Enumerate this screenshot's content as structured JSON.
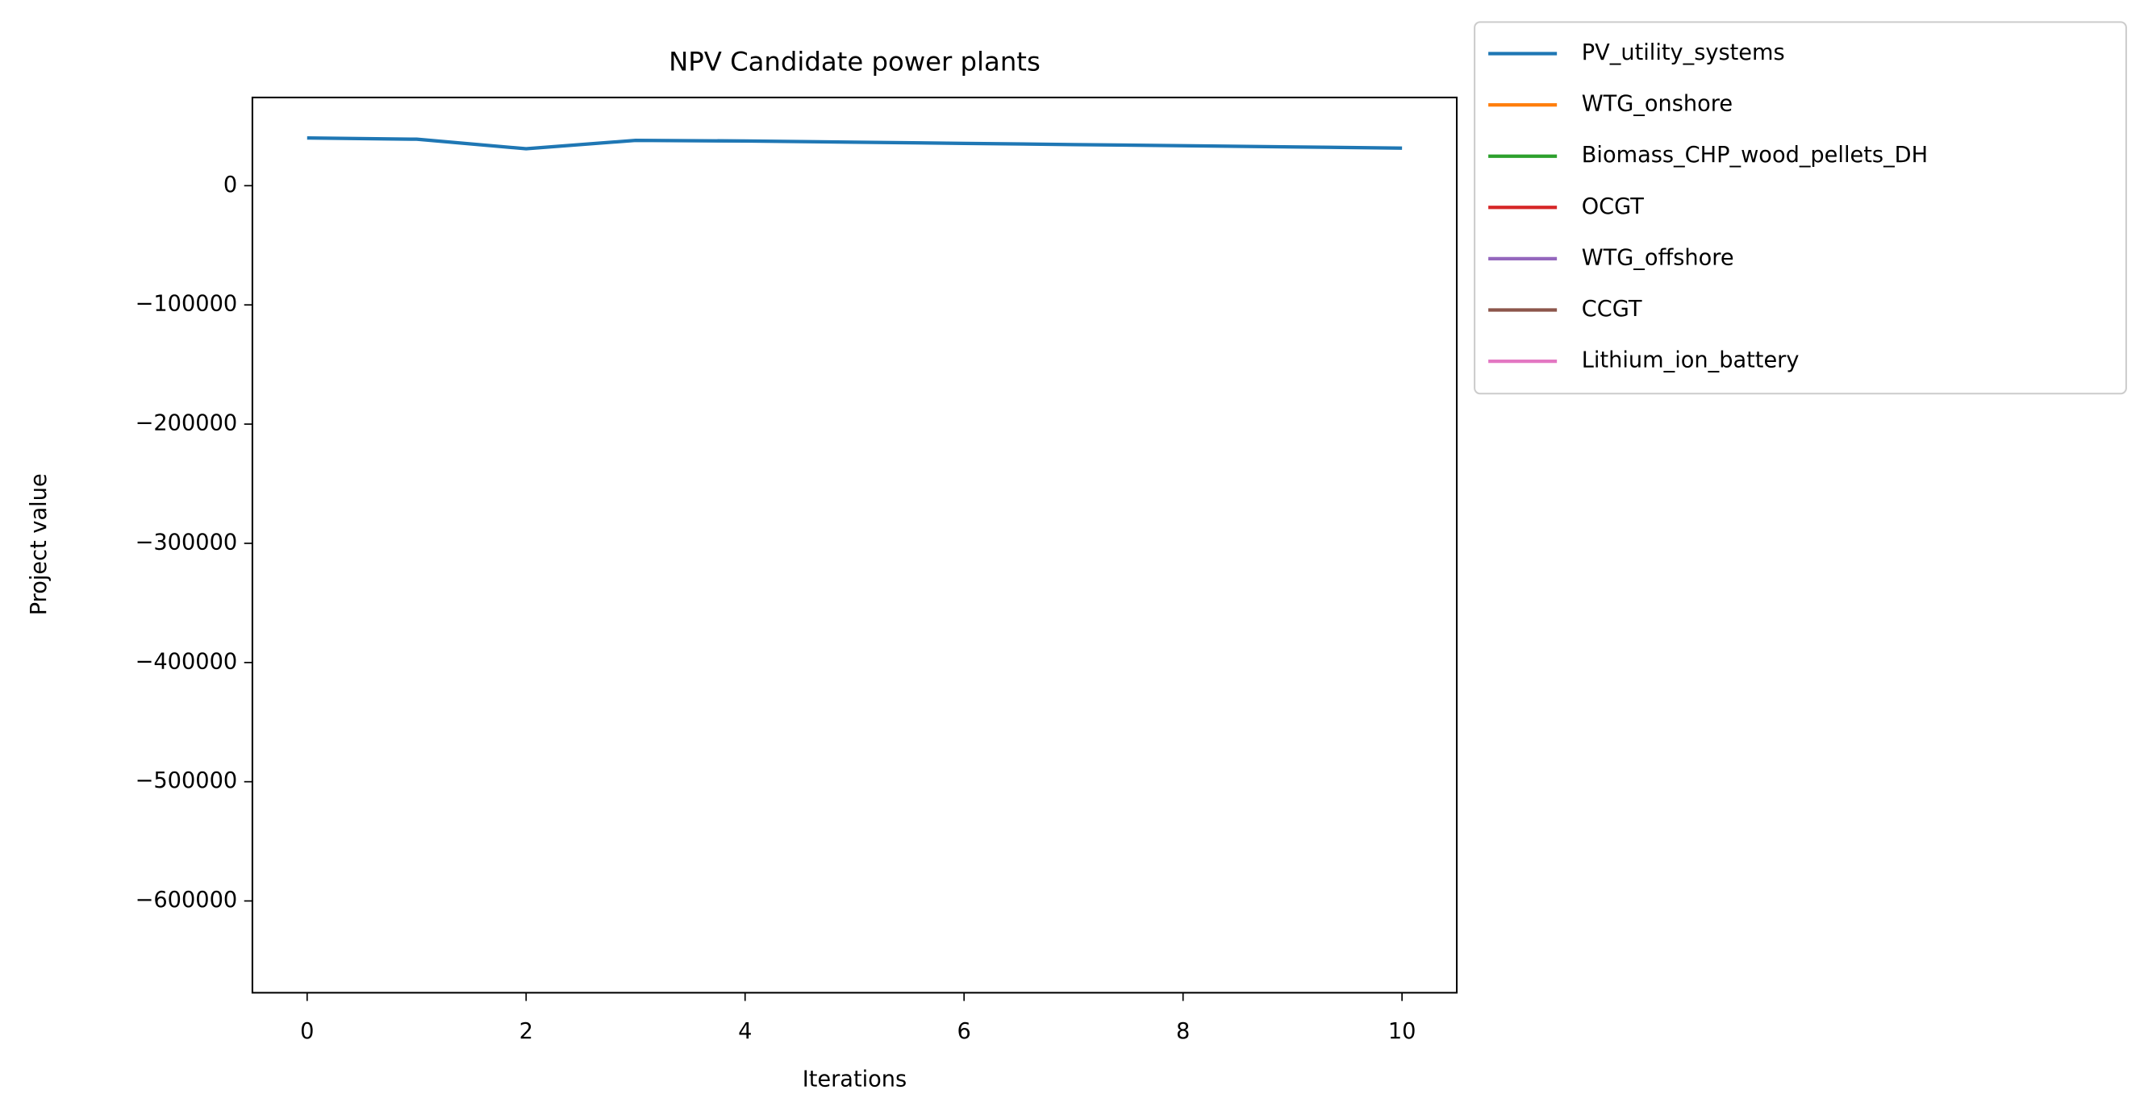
{
  "chart_data": {
    "type": "line",
    "title": "NPV Candidate power plants",
    "x_label": "Iterations",
    "y_label": "Project value",
    "x": [
      0,
      1,
      2,
      3,
      4,
      5,
      6,
      7,
      8,
      9,
      10
    ],
    "series": [
      {
        "name": "PV_utility_systems",
        "color": "#1f77b4",
        "values": [
          40000,
          39000,
          31000,
          38000,
          37500,
          36500,
          35500,
          34500,
          33500,
          32500,
          31500
        ]
      },
      {
        "name": "WTG_onshore",
        "color": "#ff7f0e",
        "values": [
          null,
          null,
          null,
          null,
          null,
          null,
          null,
          null,
          null,
          null,
          null
        ]
      },
      {
        "name": "Biomass_CHP_wood_pellets_DH",
        "color": "#2ca02c",
        "values": [
          null,
          null,
          null,
          null,
          null,
          null,
          null,
          null,
          null,
          null,
          null
        ]
      },
      {
        "name": "OCGT",
        "color": "#d62728",
        "values": [
          null,
          null,
          null,
          null,
          null,
          null,
          null,
          null,
          null,
          null,
          null
        ]
      },
      {
        "name": "WTG_offshore",
        "color": "#9467bd",
        "values": [
          null,
          null,
          null,
          null,
          null,
          null,
          null,
          null,
          null,
          null,
          null
        ]
      },
      {
        "name": "CCGT",
        "color": "#8c564b",
        "values": [
          null,
          null,
          null,
          null,
          null,
          null,
          null,
          null,
          null,
          null,
          null
        ]
      },
      {
        "name": "Lithium_ion_battery",
        "color": "#e377c2",
        "values": [
          null,
          null,
          null,
          null,
          null,
          null,
          null,
          null,
          null,
          null,
          null
        ]
      }
    ],
    "xlim": [
      -0.5,
      10.5
    ],
    "xticks": [
      0,
      2,
      4,
      6,
      8,
      10
    ],
    "ylim": [
      -677000,
      74000
    ],
    "yticks": [
      0,
      {
        "value": -100000,
        "label": "−100000"
      },
      {
        "value": -200000,
        "label": "−200000"
      },
      {
        "value": -300000,
        "label": "−300000"
      },
      {
        "value": -400000,
        "label": "−400000"
      },
      {
        "value": -500000,
        "label": "−500000"
      },
      {
        "value": -600000,
        "label": "−600000"
      }
    ],
    "grid": false,
    "legend": "outside upper right"
  }
}
